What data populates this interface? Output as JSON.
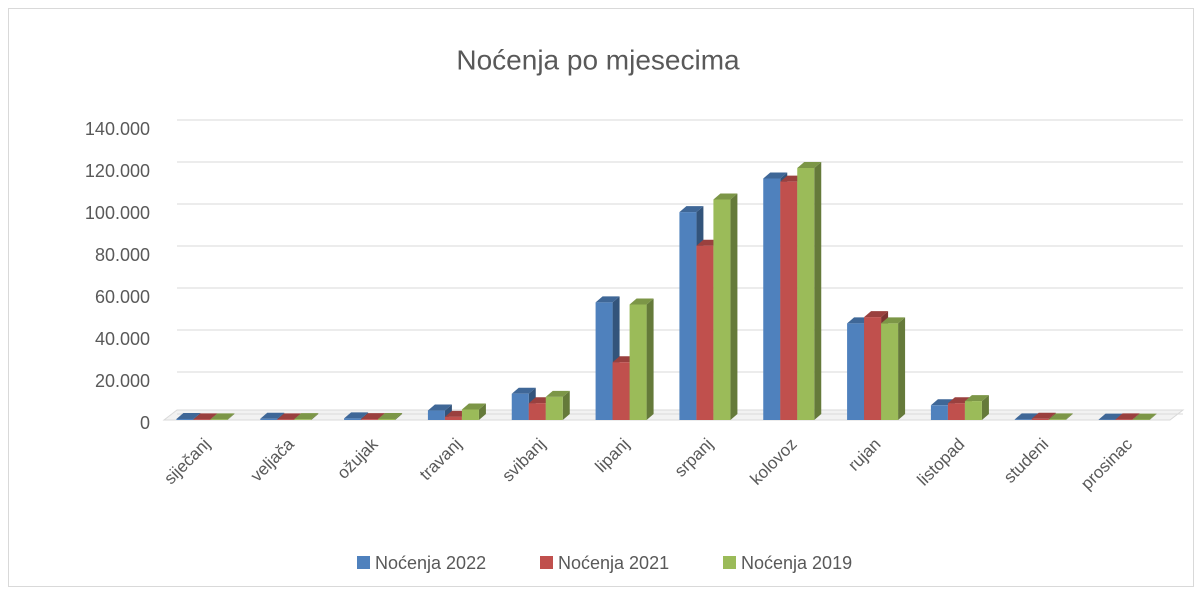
{
  "chart_data": {
    "type": "bar3d",
    "title": "Noćenja po mjesecima",
    "categories": [
      "siječanj",
      "veljača",
      "ožujak",
      "travanj",
      "svibanj",
      "lipanj",
      "srpanj",
      "kolovoz",
      "rujan",
      "listopad",
      "studeni",
      "prosinac"
    ],
    "series": [
      {
        "name": "Noćenja 2022",
        "color": "#4f81bd",
        "values": [
          500,
          600,
          800,
          4500,
          12500,
          56000,
          99000,
          115000,
          46000,
          7000,
          300,
          200
        ]
      },
      {
        "name": "Noćenja 2021",
        "color": "#c0504d",
        "values": [
          300,
          300,
          400,
          1500,
          8000,
          27500,
          83000,
          113500,
          49000,
          8000,
          600,
          300
        ]
      },
      {
        "name": "Noćenja 2019",
        "color": "#9bbb59",
        "values": [
          300,
          400,
          500,
          5000,
          11000,
          55000,
          105000,
          120000,
          46000,
          9000,
          300,
          200
        ]
      }
    ],
    "ylim": [
      0,
      140000
    ],
    "yticks": [
      0,
      {
        "value": 20000,
        "label": "20.000"
      },
      {
        "value": 40000,
        "label": "40.000"
      },
      {
        "value": 60000,
        "label": "60.000"
      },
      {
        "value": 80000,
        "label": "80.000"
      },
      {
        "value": 100000,
        "label": "100.000"
      },
      {
        "value": 120000,
        "label": "120.000"
      },
      {
        "value": 140000,
        "label": "140.000"
      }
    ],
    "grid": true,
    "legend": "bottom"
  }
}
